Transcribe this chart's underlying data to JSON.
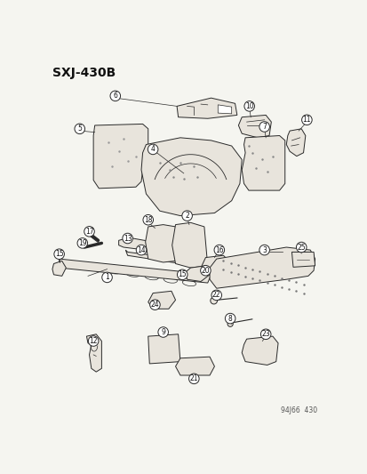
{
  "title": "SXJ–430B",
  "footer": "94J66  430",
  "bg_color": "#f5f5f0",
  "fig_width": 4.14,
  "fig_height": 5.33,
  "dpi": 100,
  "line_color": "#2a2a2a",
  "text_color": "#111111",
  "part_fill": "#e8e4dc",
  "part_edge": "#2a2a2a",
  "circle_r": 0.018,
  "lw": 0.7
}
